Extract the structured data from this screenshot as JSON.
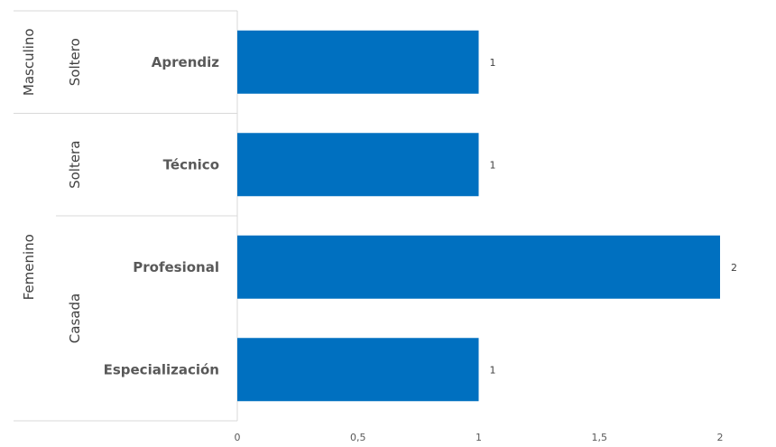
{
  "chart_data": {
    "type": "bar",
    "orientation": "horizontal",
    "categories": [
      "Aprendiz",
      "Técnico",
      "Profesional",
      "Especialización"
    ],
    "values": [
      1,
      1,
      2,
      1
    ],
    "data_labels": [
      "1",
      "1",
      "2",
      "1"
    ],
    "groups_level1": [
      {
        "label": "Soltero",
        "categories": [
          "Aprendiz"
        ]
      },
      {
        "label": "Soltera",
        "categories": [
          "Técnico"
        ]
      },
      {
        "label": "Casada",
        "categories": [
          "Profesional",
          "Especialización"
        ]
      }
    ],
    "groups_level2": [
      {
        "label": "Masculino",
        "categories": [
          "Aprendiz"
        ]
      },
      {
        "label": "Femenino",
        "categories": [
          "Técnico",
          "Profesional",
          "Especialización"
        ]
      }
    ],
    "xlim": [
      0,
      2
    ],
    "x_ticks": [
      "0",
      "0,5",
      "1",
      "1,5",
      "2"
    ],
    "grid": false,
    "bar_color": "#0070C0",
    "title": "",
    "xlabel": "",
    "ylabel": ""
  }
}
